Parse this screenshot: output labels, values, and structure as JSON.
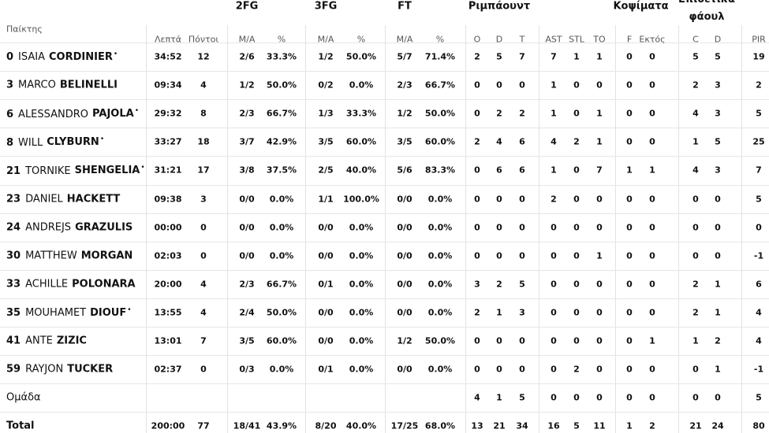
{
  "table": {
    "player_header": "Παίκτης",
    "groups": [
      {
        "label": "2FG",
        "col": 2
      },
      {
        "label": "3FG",
        "col": 4
      },
      {
        "label": "FT",
        "col": 6
      },
      {
        "label": "Ριμπάουντ",
        "col": 9
      },
      {
        "label": "Κοψίματα",
        "col": 14.5
      },
      {
        "label": "Επιθετικά φάουλ",
        "col": 16.5
      }
    ],
    "columns": [
      "Λεπτά",
      "Πόντοι",
      "Μ/Α",
      "%",
      "Μ/Α",
      "%",
      "Μ/Α",
      "%",
      "O",
      "D",
      "T",
      "AST",
      "STL",
      "TO",
      "F",
      "Εκτός",
      "C",
      "D",
      "PIR"
    ],
    "rows": [
      {
        "number": "0",
        "first": "ISAIA",
        "last": "CORDINIER",
        "mark": "•",
        "cells": [
          "34:52",
          "12",
          "2/6",
          "33.3%",
          "1/2",
          "50.0%",
          "5/7",
          "71.4%",
          "2",
          "5",
          "7",
          "7",
          "1",
          "1",
          "0",
          "0",
          "5",
          "5",
          "19"
        ]
      },
      {
        "number": "3",
        "first": "MARCO",
        "last": "BELINELLI",
        "cells": [
          "09:34",
          "4",
          "1/2",
          "50.0%",
          "0/2",
          "0.0%",
          "2/3",
          "66.7%",
          "0",
          "0",
          "0",
          "1",
          "0",
          "0",
          "0",
          "0",
          "2",
          "3",
          "2"
        ]
      },
      {
        "number": "6",
        "first": "ALESSANDRO",
        "last": "PAJOLA",
        "mark": "•",
        "cells": [
          "29:32",
          "8",
          "2/3",
          "66.7%",
          "1/3",
          "33.3%",
          "1/2",
          "50.0%",
          "0",
          "2",
          "2",
          "1",
          "0",
          "1",
          "0",
          "0",
          "4",
          "3",
          "5"
        ]
      },
      {
        "number": "8",
        "first": "WILL",
        "last": "CLYBURN",
        "mark": "•",
        "cells": [
          "33:27",
          "18",
          "3/7",
          "42.9%",
          "3/5",
          "60.0%",
          "3/5",
          "60.0%",
          "2",
          "4",
          "6",
          "4",
          "2",
          "1",
          "0",
          "0",
          "1",
          "5",
          "25"
        ]
      },
      {
        "number": "21",
        "first": "TORNIKE",
        "last": "SHENGELIA",
        "mark": "•",
        "cells": [
          "31:21",
          "17",
          "3/8",
          "37.5%",
          "2/5",
          "40.0%",
          "5/6",
          "83.3%",
          "0",
          "6",
          "6",
          "1",
          "0",
          "7",
          "1",
          "1",
          "4",
          "3",
          "7"
        ]
      },
      {
        "number": "23",
        "first": "DANIEL",
        "last": "HACKETT",
        "cells": [
          "09:38",
          "3",
          "0/0",
          "0.0%",
          "1/1",
          "100.0%",
          "0/0",
          "0.0%",
          "0",
          "0",
          "0",
          "2",
          "0",
          "0",
          "0",
          "0",
          "0",
          "0",
          "5"
        ]
      },
      {
        "number": "24",
        "first": "ANDREJS",
        "last": "GRAZULIS",
        "cells": [
          "00:00",
          "0",
          "0/0",
          "0.0%",
          "0/0",
          "0.0%",
          "0/0",
          "0.0%",
          "0",
          "0",
          "0",
          "0",
          "0",
          "0",
          "0",
          "0",
          "0",
          "0",
          "0"
        ]
      },
      {
        "number": "30",
        "first": "MATTHEW",
        "last": "MORGAN",
        "cells": [
          "02:03",
          "0",
          "0/0",
          "0.0%",
          "0/0",
          "0.0%",
          "0/0",
          "0.0%",
          "0",
          "0",
          "0",
          "0",
          "0",
          "1",
          "0",
          "0",
          "0",
          "0",
          "-1"
        ]
      },
      {
        "number": "33",
        "first": "ACHILLE",
        "last": "POLONARA",
        "cells": [
          "20:00",
          "4",
          "2/3",
          "66.7%",
          "0/1",
          "0.0%",
          "0/0",
          "0.0%",
          "3",
          "2",
          "5",
          "0",
          "0",
          "0",
          "0",
          "0",
          "2",
          "1",
          "6"
        ]
      },
      {
        "number": "35",
        "first": "MOUHAMET",
        "last": "DIOUF",
        "mark": "•",
        "cells": [
          "13:55",
          "4",
          "2/4",
          "50.0%",
          "0/0",
          "0.0%",
          "0/0",
          "0.0%",
          "2",
          "1",
          "3",
          "0",
          "0",
          "0",
          "0",
          "0",
          "2",
          "1",
          "4"
        ]
      },
      {
        "number": "41",
        "first": "ANTE",
        "last": "ZIZIC",
        "cells": [
          "13:01",
          "7",
          "3/5",
          "60.0%",
          "0/0",
          "0.0%",
          "1/2",
          "50.0%",
          "0",
          "0",
          "0",
          "0",
          "0",
          "0",
          "0",
          "1",
          "1",
          "2",
          "4"
        ]
      },
      {
        "number": "59",
        "first": "RAYJON",
        "last": "TUCKER",
        "cells": [
          "02:37",
          "0",
          "0/3",
          "0.0%",
          "0/1",
          "0.0%",
          "0/0",
          "0.0%",
          "0",
          "0",
          "0",
          "0",
          "2",
          "0",
          "0",
          "0",
          "0",
          "1",
          "-1"
        ]
      },
      {
        "label": "Ομάδα",
        "cells": [
          null,
          null,
          null,
          null,
          null,
          null,
          null,
          null,
          "4",
          "1",
          "5",
          "0",
          "0",
          "0",
          "0",
          "0",
          "0",
          "0",
          "5"
        ]
      },
      {
        "label": "Total",
        "bold": true,
        "cells": [
          "200:00",
          "77",
          "18/41",
          "43.9%",
          "8/20",
          "40.0%",
          "17/25",
          "68.0%",
          "13",
          "21",
          "34",
          "16",
          "5",
          "11",
          "1",
          "2",
          "21",
          "24",
          "80"
        ]
      }
    ]
  }
}
